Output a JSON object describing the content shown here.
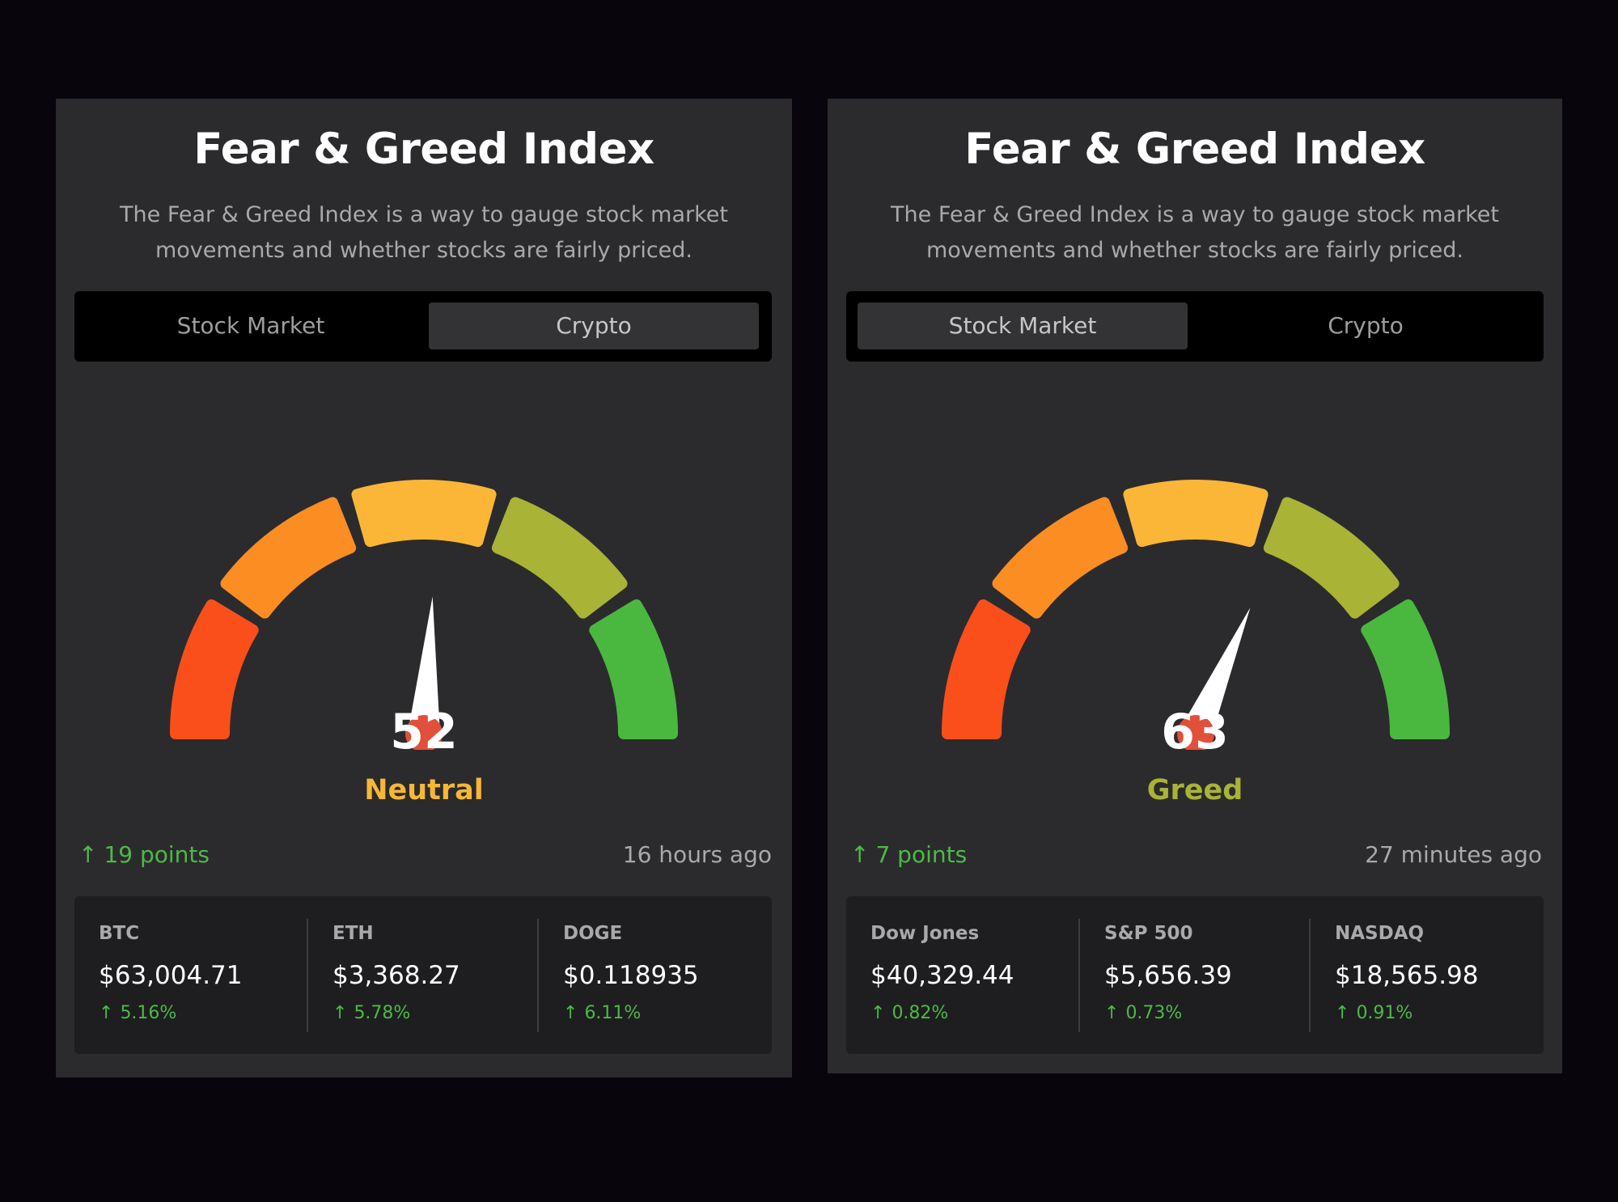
{
  "cards": [
    {
      "title": "Fear & Greed Index",
      "description": "The Fear & Greed Index is a way to gauge stock market movements and whether stocks are fairly priced.",
      "tabs": [
        {
          "label": "Stock Market",
          "active": false
        },
        {
          "label": "Crypto",
          "active": true
        }
      ],
      "gauge": {
        "value": 52,
        "min": 0,
        "max": 100,
        "label": "Neutral",
        "label_color": "#f6b637",
        "segment_colors": [
          "#fb4f1b",
          "#fb8d23",
          "#fbb637",
          "#a9b336",
          "#4ab83f"
        ],
        "needle_color": "#ffffff",
        "hub_color": "#e1503a"
      },
      "change": {
        "arrow": "↑",
        "text": "19 points"
      },
      "updated": "16 hours ago",
      "tickers": [
        {
          "name": "BTC",
          "price": "$63,004.71",
          "arrow": "↑",
          "change": "5.16%"
        },
        {
          "name": "ETH",
          "price": "$3,368.27",
          "arrow": "↑",
          "change": "5.78%"
        },
        {
          "name": "DOGE",
          "price": "$0.118935",
          "arrow": "↑",
          "change": "6.11%"
        }
      ]
    },
    {
      "title": "Fear & Greed Index",
      "description": "The Fear & Greed Index is a way to gauge stock market movements and whether stocks are fairly priced.",
      "tabs": [
        {
          "label": "Stock Market",
          "active": true
        },
        {
          "label": "Crypto",
          "active": false
        }
      ],
      "gauge": {
        "value": 63,
        "min": 0,
        "max": 100,
        "label": "Greed",
        "label_color": "#a9b336",
        "segment_colors": [
          "#fb4f1b",
          "#fb8d23",
          "#fbb637",
          "#a9b336",
          "#4ab83f"
        ],
        "needle_color": "#ffffff",
        "hub_color": "#e1503a"
      },
      "change": {
        "arrow": "↑",
        "text": "7 points"
      },
      "updated": "27 minutes ago",
      "tickers": [
        {
          "name": "Dow Jones",
          "price": "$40,329.44",
          "arrow": "↑",
          "change": "0.82%"
        },
        {
          "name": "S&P 500",
          "price": "$5,656.39",
          "arrow": "↑",
          "change": "0.73%"
        },
        {
          "name": "NASDAQ",
          "price": "$18,565.98",
          "arrow": "↑",
          "change": "0.91%"
        }
      ]
    }
  ]
}
